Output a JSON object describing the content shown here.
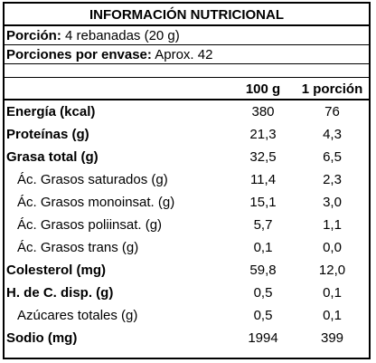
{
  "title": "INFORMACIÓN NUTRICIONAL",
  "serving": {
    "label": "Porción:",
    "value": "4 rebanadas (20 g)"
  },
  "servings_per_container": {
    "label": "Porciones por envase:",
    "value": "Aprox. 42"
  },
  "columns": [
    "",
    "100 g",
    "1 porción"
  ],
  "rows": [
    {
      "name": "Energía (kcal)",
      "per100": "380",
      "perServing": "76",
      "bold": true
    },
    {
      "name": "Proteínas (g)",
      "per100": "21,3",
      "perServing": "4,3",
      "bold": true
    },
    {
      "name": "Grasa total (g)",
      "per100": "32,5",
      "perServing": "6,5",
      "bold": true
    },
    {
      "name": "Ác. Grasos saturados (g)",
      "per100": "11,4",
      "perServing": "2,3",
      "bold": false
    },
    {
      "name": "Ác. Grasos monoinsat. (g)",
      "per100": "15,1",
      "perServing": "3,0",
      "bold": false
    },
    {
      "name": "Ác. Grasos poliinsat. (g)",
      "per100": "5,7",
      "perServing": "1,1",
      "bold": false
    },
    {
      "name": "Ác. Grasos trans (g)",
      "per100": "0,1",
      "perServing": "0,0",
      "bold": false
    },
    {
      "name": "Colesterol (mg)",
      "per100": "59,8",
      "perServing": "12,0",
      "bold": true
    },
    {
      "name": "H. de C. disp. (g)",
      "per100": "0,5",
      "perServing": "0,1",
      "bold": true
    },
    {
      "name": "Azúcares totales (g)",
      "per100": "0,5",
      "perServing": "0,1",
      "bold": false
    },
    {
      "name": "Sodio (mg)",
      "per100": "1994",
      "perServing": "399",
      "bold": true
    }
  ]
}
